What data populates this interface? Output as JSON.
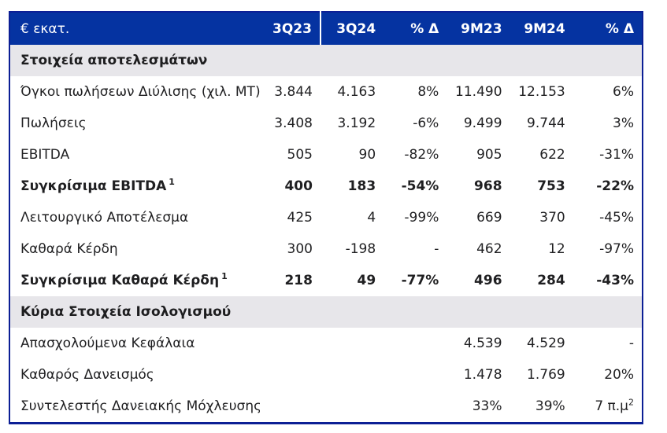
{
  "colors": {
    "header_navy": "#0533a1",
    "border_navy": "#0c1f95",
    "section_gray": "#e7e6ea",
    "text": "#1f1f21"
  },
  "header": {
    "unit": "€ εκατ.",
    "cols": [
      "3Q23",
      "3Q24",
      "% Δ",
      "9M23",
      "9M24",
      "% Δ"
    ]
  },
  "sections": {
    "results": "Στοιχεία αποτελεσμάτων",
    "balance": "Κύρια Στοιχεία Ισολογισμού"
  },
  "rows": [
    {
      "label": "Όγκοι πωλήσεων Διύλισης (χιλ. ΜΤ)",
      "values": [
        "3.844",
        "4.163",
        "8%",
        "11.490",
        "12.153",
        "6%"
      ]
    },
    {
      "label": "Πωλήσεις",
      "values": [
        "3.408",
        "3.192",
        "-6%",
        "9.499",
        "9.744",
        "3%"
      ]
    },
    {
      "label": "EBITDA",
      "values": [
        "505",
        "90",
        "-82%",
        "905",
        "622",
        "-31%"
      ]
    },
    {
      "label": "Συγκρίσιμα EBITDA",
      "label_sup": "1",
      "bold": true,
      "values": [
        "400",
        "183",
        "-54%",
        "968",
        "753",
        "-22%"
      ]
    },
    {
      "label": "Λειτουργικό Αποτέλεσμα",
      "values": [
        "425",
        "4",
        "-99%",
        "669",
        "370",
        "-45%"
      ]
    },
    {
      "label": "Καθαρά Κέρδη",
      "values": [
        "300",
        "-198",
        "-",
        "462",
        "12",
        "-97%"
      ]
    },
    {
      "label": "Συγκρίσιμα Καθαρά Κέρδη",
      "label_sup": "1",
      "bold": true,
      "values": [
        "218",
        "49",
        "-77%",
        "496",
        "284",
        "-43%"
      ]
    },
    {
      "label": "Απασχολούμενα Κεφάλαια",
      "values": [
        "",
        "",
        "",
        "4.539",
        "4.529",
        "-"
      ]
    },
    {
      "label": "Καθαρός Δανεισμός",
      "values": [
        "",
        "",
        "",
        "1.478",
        "1.769",
        "20%"
      ]
    },
    {
      "label": "Συντελεστής Δανειακής Μόχλευσης",
      "values": [
        "",
        "",
        "",
        "33%",
        "39%",
        "7 π.μ"
      ],
      "value_sup": "2"
    }
  ]
}
